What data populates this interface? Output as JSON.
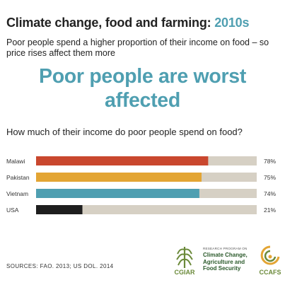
{
  "header": {
    "title": "Climate change, food and farming:",
    "year": "2010s",
    "subtitle": "Poor people spend a higher proportion of their income on food – so price rises affect them more",
    "headline": "Poor people are worst affected",
    "question": "How much of their income do poor people spend on food?"
  },
  "chart_data": {
    "type": "bar",
    "orientation": "horizontal",
    "categories": [
      "Malawi",
      "Pakistan",
      "Vietnam",
      "USA"
    ],
    "values": [
      78,
      75,
      74,
      21
    ],
    "value_labels": [
      "78%",
      "75%",
      "74%",
      "21%"
    ],
    "colors": [
      "#c9472e",
      "#e3a534",
      "#4f9fb1",
      "#1e1e1e"
    ],
    "track_color": "#d6d0c4",
    "xlim": [
      0,
      100
    ],
    "unit": "%",
    "title": "How much of their income do poor people spend on food?",
    "xlabel": "",
    "ylabel": "",
    "grid": false
  },
  "footer": {
    "sources": "SOURCES: FAO. 2013; US DOL. 2014",
    "cgiar_label": "CGIAR",
    "program_small": "RESEARCH PROGRAM ON",
    "program_name": [
      "Climate Change,",
      "Agriculture and",
      "Food Security"
    ],
    "ccafs_label": "CCAFS"
  }
}
